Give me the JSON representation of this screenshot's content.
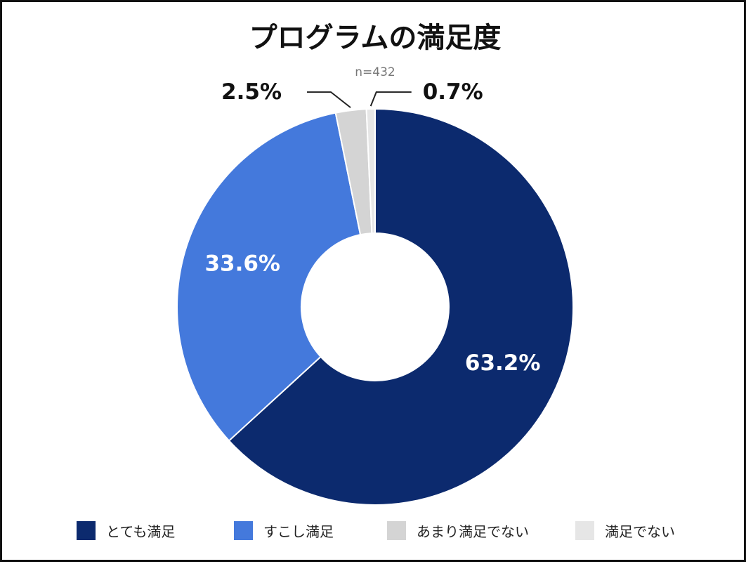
{
  "chart_data": {
    "type": "pie",
    "title": "プログラムの満足度",
    "subtitle": "n=432",
    "categories": [
      "とても満足",
      "すこし満足",
      "あまり満足でない",
      "満足でない"
    ],
    "values": [
      63.2,
      33.6,
      2.5,
      0.7
    ],
    "labels": [
      "63.2%",
      "33.6%",
      "2.5%",
      "0.7%"
    ],
    "colors": [
      "#0c2a6e",
      "#4479dc",
      "#d4d4d4",
      "#e6e6e6"
    ],
    "donut": true,
    "legend_position": "bottom"
  }
}
